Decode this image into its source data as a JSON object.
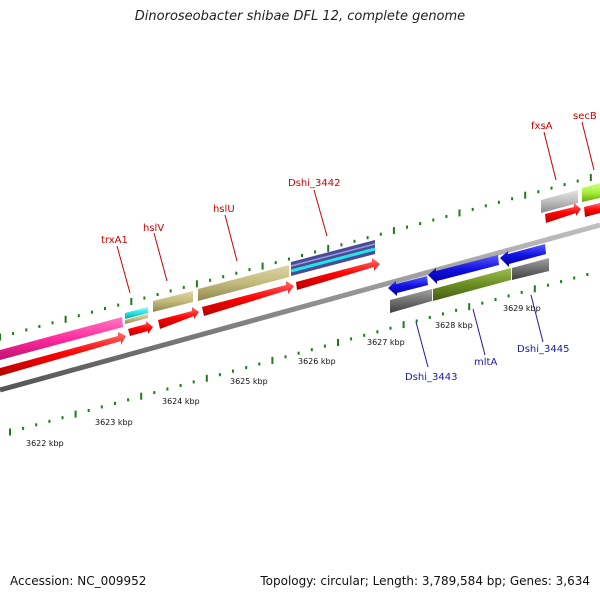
{
  "title": "Dinoroseobacter shibae DFL 12, complete genome",
  "footer": {
    "accession": "Accession: NC_009952",
    "stats": "Topology: circular; Length: 3,789,584 bp; Genes: 3,634"
  },
  "ticks": [
    {
      "label": "3622 kbp"
    },
    {
      "label": "3623 kbp"
    },
    {
      "label": "3624 kbp"
    },
    {
      "label": "3625 kbp"
    },
    {
      "label": "3626 kbp"
    },
    {
      "label": "3627 kbp"
    },
    {
      "label": "3628 kbp"
    },
    {
      "label": "3629 kbp"
    }
  ],
  "genes_top": [
    {
      "label": "trxA1"
    },
    {
      "label": "hslV"
    },
    {
      "label": "hslU"
    },
    {
      "label": "Dshi_3442"
    },
    {
      "label": "fxsA"
    },
    {
      "label": "secB"
    }
  ],
  "genes_bottom": [
    {
      "label": "Dshi_3443"
    },
    {
      "label": "mltA"
    },
    {
      "label": "Dshi_3445"
    }
  ],
  "colors": {
    "cds": "#ff0000",
    "gene_pink": "#ff2b9e",
    "gene_cyan": "#22e5e5",
    "gene_olive": "#c2b97a",
    "gene_grey": "#bdbdbd",
    "gene_lime": "#a6f03a",
    "gene_blue": "#1010e0",
    "gene_darkgrey": "#707070",
    "gene_green": "#6b8e23",
    "backbone": "#8c8c8c",
    "tick": "#1f7a1f"
  }
}
